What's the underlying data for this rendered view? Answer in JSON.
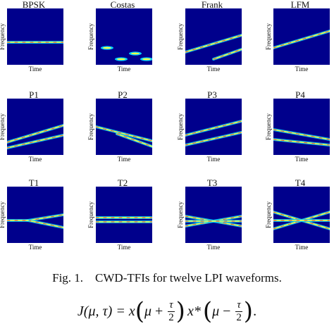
{
  "figure": {
    "axis_xlabel": "Time",
    "axis_ylabel": "Frequency",
    "panels": [
      {
        "title": "BPSK"
      },
      {
        "title": "Costas"
      },
      {
        "title": "Frank"
      },
      {
        "title": "LFM"
      },
      {
        "title": "P1"
      },
      {
        "title": "P2"
      },
      {
        "title": "P3"
      },
      {
        "title": "P4"
      },
      {
        "title": "T1"
      },
      {
        "title": "T2"
      },
      {
        "title": "T3"
      },
      {
        "title": "T4"
      }
    ]
  },
  "caption": {
    "text": "Fig. 1.    CWD-TFIs for twelve LPI waveforms."
  },
  "equation": {
    "lhs": "J(μ, τ) = x",
    "mu": "μ",
    "plus": " + ",
    "minus": " − ",
    "tau": "τ",
    "two": "2",
    "xstar": "x*",
    "end": "."
  },
  "colors": {
    "background": "#00008c",
    "ridge_outer": "#00d0ff",
    "ridge_mid": "#ffff40",
    "ridge_core": "#ff2020"
  }
}
